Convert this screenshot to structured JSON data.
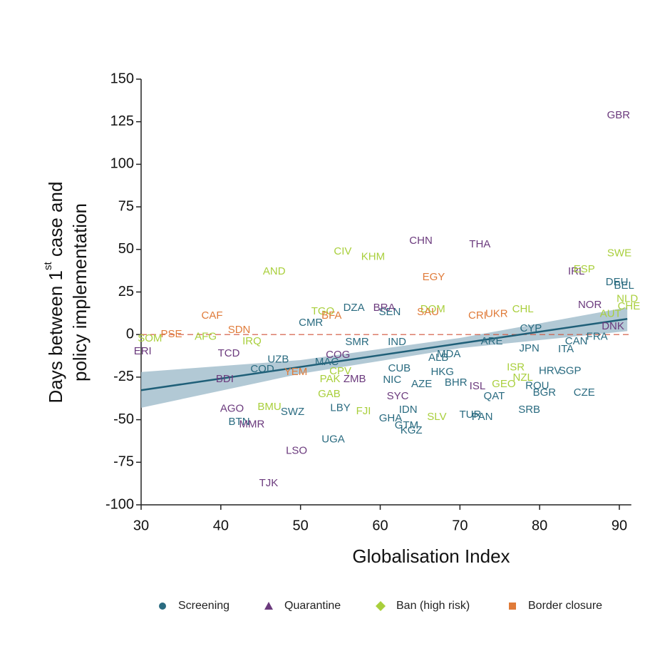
{
  "chart_data": {
    "type": "scatter",
    "xlabel": "Globalisation Index",
    "ylabel": {
      "before": "Days between 1",
      "superscript": "st",
      "after": " case and",
      "line2": "policy implementation"
    },
    "xlim": [
      30,
      91.5
    ],
    "ylim": [
      -100,
      150
    ],
    "xticks": [
      30,
      40,
      50,
      60,
      70,
      80,
      90
    ],
    "yticks": [
      -100,
      -75,
      -50,
      -25,
      0,
      25,
      50,
      75,
      100,
      125,
      150
    ],
    "reference_line": {
      "y": 0,
      "color": "#d0533a"
    },
    "fit": {
      "color": "#1f5f78",
      "band_color": "#9fbccb",
      "x": [
        30,
        50,
        70,
        91
      ],
      "values": [
        -32.7,
        -19.0,
        -5.2,
        9.2
      ],
      "lower": [
        -43,
        -23,
        -8,
        2
      ],
      "upper": [
        -22,
        -15,
        -2,
        16
      ]
    },
    "series": [
      {
        "name": "Screening",
        "color": "#2a6b80",
        "marker": "circle",
        "labels": [
          "DEU",
          "BEL",
          "CAN",
          "ITA",
          "JPN",
          "FRA",
          "HRV",
          "SGP",
          "CZE",
          "BGR",
          "ROU",
          "SRB",
          "QAT",
          "PAN",
          "BHR",
          "HKG",
          "AZE",
          "NIC",
          "CUB",
          "MDA",
          "ALB",
          "MAC",
          "COD",
          "UZB",
          "CMR",
          "DZA",
          "SEN",
          "IND",
          "GHA",
          "KGZ",
          "GTM",
          "UGA",
          "BTN",
          "SWZ",
          "ARE",
          "IDN",
          "TUR",
          "SMR",
          "LBY",
          "CYP"
        ],
        "x": [
          89.7,
          90.6,
          84.6,
          83.3,
          78.7,
          87.2,
          81.3,
          83.8,
          85.6,
          80.6,
          79.7,
          78.7,
          74.3,
          72.8,
          69.5,
          67.8,
          65.2,
          61.5,
          62.4,
          68.6,
          67.3,
          53.3,
          45.2,
          47.2,
          51.3,
          56.7,
          61.2,
          62.1,
          61.3,
          63.9,
          63.3,
          54.1,
          42.3,
          49.0,
          74.0,
          63.5,
          71.3,
          57.1,
          55.0,
          78.9
        ],
        "values": [
          30.6,
          28.5,
          -4.2,
          -8.8,
          -8.4,
          -1.3,
          -21.4,
          -21.4,
          -34.3,
          -34.3,
          -30.2,
          -44.4,
          -36.4,
          -48.6,
          -28.5,
          -22.2,
          -29.3,
          -26.8,
          -20.1,
          -11.7,
          -13.8,
          -16.3,
          -20.5,
          -14.7,
          6.7,
          15.5,
          13.0,
          -4.6,
          -49.4,
          -56.5,
          -53.6,
          -61.6,
          -51.5,
          -45.6,
          -4.2,
          -44.4,
          -47.3,
          -4.6,
          -43.2,
          3.4
        ]
      },
      {
        "name": "Quarantine",
        "color": "#6b3a7d",
        "marker": "triangle",
        "labels": [
          "GBR",
          "CHN",
          "THA",
          "IRL",
          "NOR",
          "ERI",
          "TCD",
          "BDI",
          "AGO",
          "MMR",
          "LSO",
          "TJK",
          "BRA",
          "COG",
          "ZMB",
          "SYC",
          "ISL",
          "DNK"
        ],
        "x": [
          89.9,
          65.1,
          72.5,
          84.6,
          86.3,
          30.2,
          41.0,
          40.5,
          41.4,
          43.9,
          49.5,
          46.0,
          60.5,
          54.7,
          56.8,
          62.2,
          72.2,
          89.2
        ],
        "values": [
          128.6,
          54.9,
          52.8,
          36.9,
          17.2,
          -10.0,
          -11.3,
          -26.4,
          -43.6,
          -52.8,
          -68.3,
          -87.5,
          15.5,
          -12.1,
          -26.4,
          -36.4,
          -30.6,
          4.6
        ]
      },
      {
        "name": "Ban (high risk)",
        "color": "#a9cf3c",
        "marker": "diamond",
        "labels": [
          "SWE",
          "NLD",
          "CHE",
          "AUT",
          "ESP",
          "CIV",
          "KHM",
          "AND",
          "SOM",
          "AFG",
          "TGO",
          "ISR",
          "NZL",
          "GEO",
          "BMU",
          "FJI",
          "SLV",
          "PAK",
          "CPV",
          "GAB",
          "IRQ",
          "CHL",
          "DOM"
        ],
        "x": [
          90.0,
          91.0,
          91.2,
          88.9,
          85.6,
          55.3,
          59.1,
          46.7,
          31.1,
          38.1,
          52.8,
          77.0,
          77.9,
          75.5,
          46.1,
          57.9,
          67.1,
          53.7,
          55.0,
          53.6,
          43.9,
          77.9,
          66.6
        ],
        "values": [
          47.7,
          20.9,
          16.3,
          12.1,
          38.1,
          48.6,
          45.6,
          36.9,
          -2.5,
          -1.3,
          13.4,
          -19.3,
          -25.5,
          -29.3,
          -42.7,
          -45.2,
          -48.6,
          -26.4,
          -21.8,
          -35.2,
          -4.2,
          14.7,
          14.7
        ]
      },
      {
        "name": "Border closure",
        "color": "#e07b39",
        "marker": "square",
        "labels": [
          "EGY",
          "CAF",
          "PSE",
          "SDN",
          "YEM",
          "BFA",
          "SAU",
          "UKR",
          "CRI"
        ],
        "x": [
          66.7,
          38.9,
          33.8,
          42.3,
          49.4,
          53.9,
          66.0,
          74.6,
          72.2
        ],
        "values": [
          33.5,
          10.9,
          0,
          2.5,
          -22.2,
          10.9,
          13.0,
          12.1,
          10.9
        ]
      }
    ]
  }
}
